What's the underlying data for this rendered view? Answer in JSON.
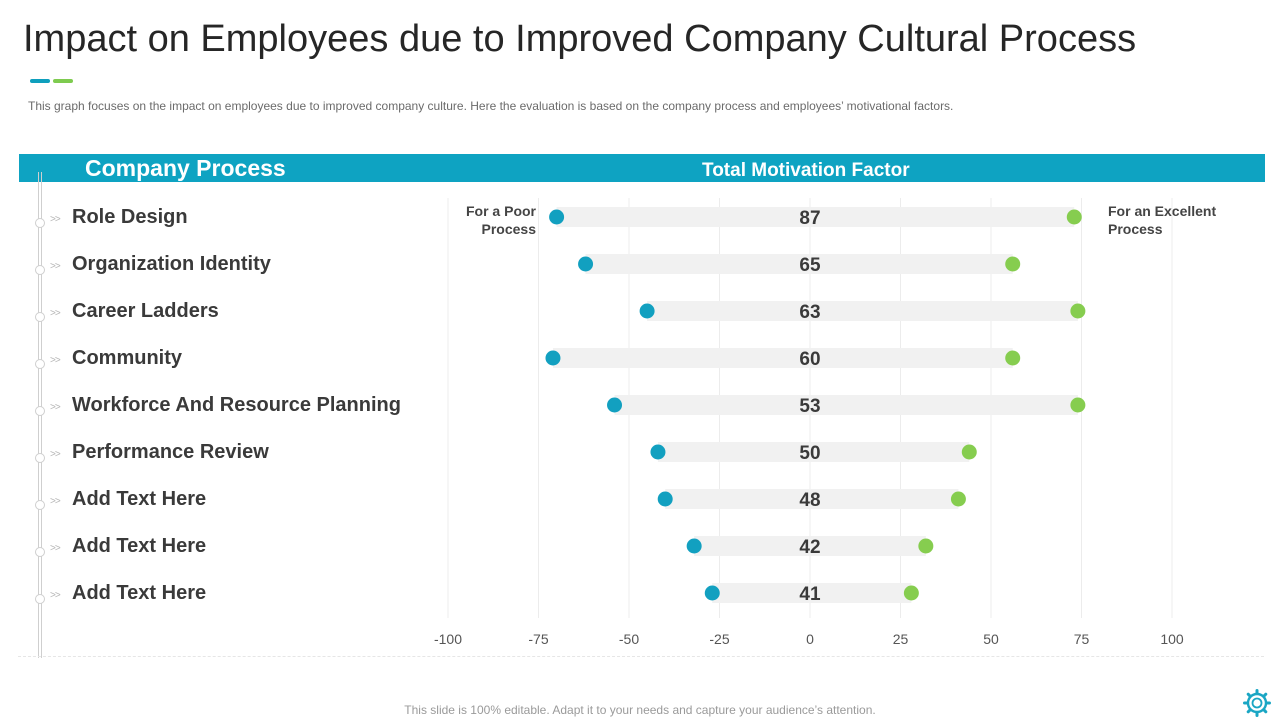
{
  "title": "Impact on Employees due to Improved Company Cultural Process",
  "subtitle": "This graph focuses on the impact on employees due to improved  company culture. Here the evaluation  is based on the company process and employees’ motivational  factors.",
  "header": {
    "left": "Company Process",
    "right": "Total Motivation Factor"
  },
  "labels": {
    "poor": "For a Poor Process",
    "excellent": "For an Excellent Process"
  },
  "footer": "This slide is 100% editable. Adapt it to your needs and capture your audience’s attention.",
  "colors": {
    "accent": "#0ea3c2",
    "poor": "#12a0c0",
    "excellent": "#86cd4f",
    "track": "#f1f1f1"
  },
  "icons": {
    "corner": "gear-icon"
  },
  "chart_data": {
    "type": "dumbbell",
    "categories": [
      "Role Design",
      "Organization Identity",
      "Career Ladders",
      "Community",
      "Workforce And Resource Planning",
      "Performance Review",
      "Add Text Here",
      "Add Text Here",
      "Add Text Here"
    ],
    "series": [
      {
        "name": "For a Poor Process",
        "values": [
          -70,
          -62,
          -45,
          -71,
          -54,
          -42,
          -40,
          -32,
          -27
        ]
      },
      {
        "name": "For an Excellent Process",
        "values": [
          73,
          56,
          74,
          56,
          74,
          44,
          41,
          32,
          28
        ]
      }
    ],
    "totals": [
      "87",
      "65",
      "63",
      "60",
      "53",
      "50",
      "48",
      "42",
      "41"
    ],
    "x_ticks": [
      "-100",
      "-75",
      "-50",
      "-25",
      "0",
      "25",
      "50",
      "75",
      "100"
    ],
    "xlim": [
      -100,
      100
    ],
    "grid": true
  }
}
